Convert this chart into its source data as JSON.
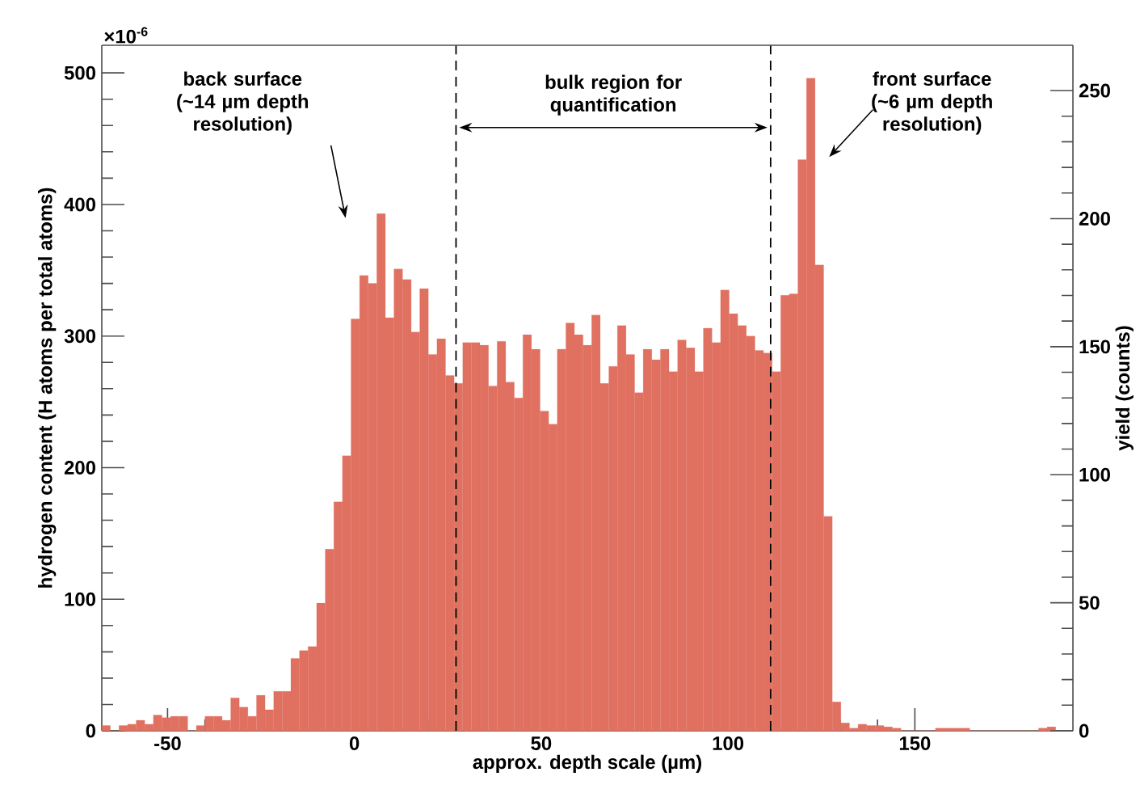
{
  "chart_data": {
    "type": "histogram",
    "xlabel": "approx. depth scale (µm)",
    "ylabel": "hydrogen content (H atoms per total atoms)",
    "y2label": "yield (counts)",
    "color": "#e07060",
    "bins": [
      -67.6,
      -65.3,
      -63.0,
      -60.7,
      -58.4,
      -56.1,
      -53.8,
      -51.5,
      -49.2,
      -46.9,
      -44.6,
      -42.3,
      -40.0,
      -37.7,
      -35.4,
      -33.1,
      -30.8,
      -28.5,
      -26.2,
      -23.9,
      -21.6,
      -19.3,
      -17.0,
      -14.7,
      -12.4,
      -10.1,
      -7.8,
      -5.5,
      -3.2,
      -0.9,
      1.4,
      3.7,
      6.0,
      8.3,
      10.6,
      12.9,
      15.2,
      17.5,
      19.8,
      22.1,
      24.4,
      26.7,
      29.0,
      31.3,
      33.6,
      35.9,
      38.2,
      40.5,
      42.8,
      45.1,
      47.4,
      49.7,
      52.0,
      54.3,
      56.6,
      58.9,
      61.2,
      63.5,
      65.8,
      68.1,
      70.4,
      72.7,
      75.0,
      77.3,
      79.6,
      81.9,
      84.2,
      86.5,
      88.8,
      91.1,
      93.4,
      95.7,
      98.0,
      100.3,
      102.6,
      104.9,
      107.2,
      109.5,
      111.8,
      114.1,
      116.4,
      118.7,
      121.0,
      123.3,
      125.6,
      127.9,
      130.2,
      132.5,
      134.8,
      137.1,
      139.4,
      141.7,
      144.0,
      146.3,
      148.6,
      150.9,
      153.2,
      155.5,
      157.8,
      160.1,
      162.4,
      164.7,
      167.0,
      169.3,
      171.6,
      173.9,
      176.2,
      178.5,
      180.8,
      183.1,
      185.4,
      187.7,
      190.0,
      192.3
    ],
    "values": [
      4,
      0,
      4,
      5,
      8,
      5,
      12,
      10,
      11,
      11,
      0,
      4,
      11,
      11,
      8,
      25,
      18,
      11,
      27,
      16,
      30,
      30,
      55,
      61,
      64,
      97,
      138,
      174,
      209,
      313,
      346,
      340,
      393,
      314,
      351,
      343,
      303,
      336,
      286,
      298,
      270,
      264,
      295,
      295,
      293,
      262,
      296,
      265,
      253,
      301,
      290,
      243,
      233,
      290,
      310,
      301,
      293,
      316,
      264,
      277,
      308,
      286,
      257,
      290,
      282,
      290,
      273,
      297,
      291,
      273,
      306,
      295,
      335,
      317,
      308,
      300,
      289,
      287,
      273,
      331,
      332,
      434,
      496,
      354,
      163,
      22,
      6,
      2,
      5,
      4,
      4,
      3,
      2,
      0,
      0,
      0,
      0,
      2,
      2,
      2,
      2,
      0,
      0,
      0,
      0,
      0,
      0,
      0,
      0,
      2,
      3,
      0,
      0
    ],
    "xlim": [
      -67.6,
      192.3
    ],
    "xticks": [
      -50,
      0,
      50,
      100,
      150
    ],
    "ylim": [
      0,
      521
    ],
    "yticks": [
      0,
      100,
      200,
      300,
      400,
      500
    ],
    "y2lim": [
      0,
      267.7
    ],
    "y2ticks": [
      0,
      50,
      100,
      150,
      200,
      250
    ],
    "ref_lines": [
      {
        "axis": "x",
        "value": 27.2,
        "line_style": "dashed"
      },
      {
        "axis": "x",
        "value": 111.4,
        "line_style": "dashed"
      }
    ],
    "annotations": [
      "×10$^{-6}$",
      "back surface (~14 µm depth resolution)",
      "bulk region for quantification",
      "front surface (~6 µm depth resolution)"
    ]
  }
}
